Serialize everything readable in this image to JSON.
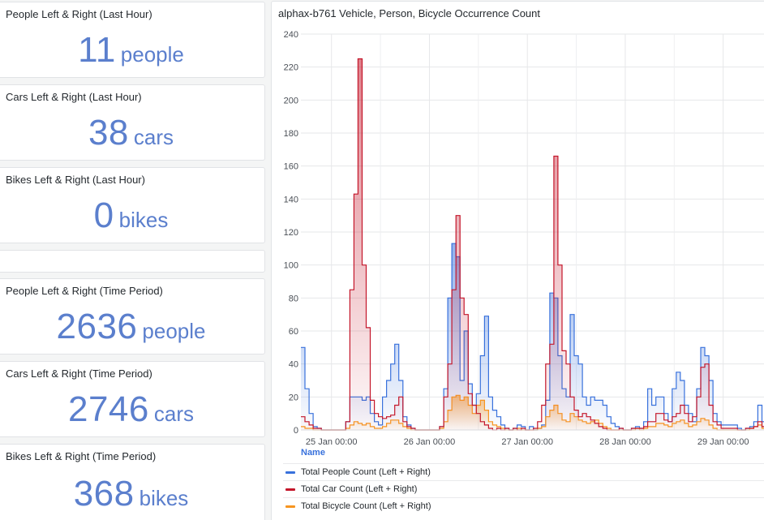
{
  "stats": [
    {
      "title": "People Left & Right (Last Hour)",
      "value": "11",
      "unit": "people"
    },
    {
      "title": "Cars Left & Right (Last Hour)",
      "value": "38",
      "unit": "cars"
    },
    {
      "title": "Bikes Left & Right (Last Hour)",
      "value": "0",
      "unit": "bikes"
    },
    {
      "title": "People Left & Right (Time Period)",
      "value": "2636",
      "unit": "people"
    },
    {
      "title": "Cars Left & Right (Time Period)",
      "value": "2746",
      "unit": "cars"
    },
    {
      "title": "Bikes Left & Right (Time Period)",
      "value": "368",
      "unit": "bikes"
    }
  ],
  "colors": {
    "people": "#3871dc",
    "cars": "#c4162a",
    "bikes": "#f79520",
    "stat_value": "#5b7fcd"
  },
  "chart_data": {
    "type": "line",
    "title": "alphax-b761 Vehicle, Person, Bicycle Occurrence Count",
    "legend_header": "Name",
    "ylim": [
      0,
      240
    ],
    "yticks": [
      0,
      20,
      40,
      60,
      80,
      100,
      120,
      140,
      160,
      180,
      200,
      220,
      240
    ],
    "xlim_hours": [
      -7.5,
      107
    ],
    "xticks": [
      {
        "label": "25 Jan 00:00",
        "hour": 0
      },
      {
        "label": "26 Jan 00:00",
        "hour": 24
      },
      {
        "label": "27 Jan 00:00",
        "hour": 48
      },
      {
        "label": "28 Jan 00:00",
        "hour": 72
      },
      {
        "label": "29 Jan 00:00",
        "hour": 96
      }
    ],
    "grid": true,
    "legend_position": "bottom",
    "series": [
      {
        "name": "Total People Count (Left + Right)",
        "color": "#3871dc",
        "x": [
          -7.5,
          -6.5,
          -5.5,
          -4.5,
          -3.5,
          -2.5,
          -1.5,
          3.5,
          4.5,
          5.5,
          6.5,
          7.5,
          8.5,
          9.5,
          10.5,
          11.5,
          12.5,
          13.5,
          14.5,
          15.5,
          16.5,
          17.5,
          18.5,
          19.5,
          20.5,
          26.5,
          27.5,
          28.5,
          29.5,
          30.5,
          31.5,
          32.5,
          33.5,
          34.5,
          35.5,
          36.5,
          37.5,
          38.5,
          39.5,
          40.5,
          41.5,
          42.5,
          43.5,
          44.5,
          45.5,
          46.5,
          47.5,
          48.5,
          49.5,
          50.5,
          51.5,
          52.5,
          53.5,
          54.5,
          55.5,
          56.5,
          57.5,
          58.5,
          59.5,
          60.5,
          61.5,
          62.5,
          63.5,
          64.5,
          65.5,
          66.5,
          67.5,
          68.5,
          69.5,
          70.5,
          71.5,
          72.5,
          73.5,
          74.5,
          75.5,
          76.5,
          77.5,
          78.5,
          79.5,
          80.5,
          81.5,
          82.5,
          83.5,
          84.5,
          85.5,
          86.5,
          87.5,
          88.5,
          89.5,
          90.5,
          91.5,
          92.5,
          93.5,
          94.5,
          95.5,
          99.5,
          100.5,
          101.5,
          102.5,
          103.5,
          104.5,
          105.5,
          106.5
        ],
        "values": [
          50,
          25,
          10,
          2,
          1,
          0,
          0,
          5,
          20,
          20,
          20,
          18,
          20,
          10,
          5,
          3,
          20,
          30,
          40,
          52,
          30,
          8,
          3,
          1,
          0,
          2,
          25,
          80,
          113,
          105,
          30,
          60,
          28,
          15,
          22,
          45,
          69,
          20,
          12,
          8,
          3,
          1,
          0,
          1,
          3,
          2,
          0,
          2,
          0,
          1,
          3,
          18,
          83,
          80,
          45,
          25,
          20,
          70,
          45,
          40,
          20,
          15,
          20,
          18,
          18,
          15,
          8,
          4,
          2,
          1,
          0,
          0,
          1,
          2,
          1,
          5,
          25,
          15,
          20,
          20,
          10,
          5,
          25,
          35,
          30,
          15,
          10,
          5,
          25,
          50,
          45,
          30,
          10,
          5,
          3,
          1,
          0,
          1,
          2,
          5,
          15,
          5,
          0
        ]
      },
      {
        "name": "Total Car Count (Left + Right)",
        "color": "#c4162a",
        "x": [
          -7.5,
          -6.5,
          -5.5,
          -4.5,
          -3.5,
          -2.5,
          -1.5,
          3.5,
          4.5,
          5.5,
          6.5,
          7.5,
          8.5,
          9.5,
          10.5,
          11.5,
          12.5,
          13.5,
          14.5,
          15.5,
          16.5,
          17.5,
          18.5,
          19.5,
          20.5,
          26.5,
          27.5,
          28.5,
          29.5,
          30.5,
          31.5,
          32.5,
          33.5,
          34.5,
          35.5,
          36.5,
          37.5,
          38.5,
          39.5,
          40.5,
          41.5,
          42.5,
          43.5,
          44.5,
          45.5,
          46.5,
          47.5,
          48.5,
          49.5,
          50.5,
          51.5,
          52.5,
          53.5,
          54.5,
          55.5,
          56.5,
          57.5,
          58.5,
          59.5,
          60.5,
          61.5,
          62.5,
          63.5,
          64.5,
          65.5,
          66.5,
          67.5,
          68.5,
          69.5,
          70.5,
          71.5,
          72.5,
          73.5,
          74.5,
          75.5,
          76.5,
          77.5,
          78.5,
          79.5,
          80.5,
          81.5,
          82.5,
          83.5,
          84.5,
          85.5,
          86.5,
          87.5,
          88.5,
          89.5,
          90.5,
          91.5,
          92.5,
          93.5,
          94.5,
          95.5,
          99.5,
          100.5,
          101.5,
          102.5,
          103.5,
          104.5,
          105.5,
          106.5
        ],
        "values": [
          8,
          5,
          3,
          1,
          1,
          0,
          0,
          5,
          85,
          143,
          225,
          100,
          62,
          18,
          10,
          8,
          7,
          8,
          9,
          15,
          20,
          5,
          2,
          1,
          0,
          2,
          20,
          40,
          85,
          130,
          80,
          70,
          22,
          15,
          10,
          5,
          3,
          1,
          0,
          1,
          0,
          1,
          0,
          1,
          0,
          1,
          0,
          0,
          1,
          5,
          15,
          40,
          52,
          166,
          100,
          48,
          40,
          20,
          12,
          8,
          10,
          8,
          6,
          4,
          2,
          1,
          0,
          0,
          0,
          1,
          0,
          0,
          1,
          1,
          1,
          2,
          5,
          5,
          10,
          10,
          6,
          5,
          8,
          10,
          15,
          10,
          5,
          8,
          20,
          38,
          40,
          15,
          5,
          3,
          1,
          0,
          0,
          1,
          1,
          2,
          5,
          2,
          0
        ]
      },
      {
        "name": "Total Bicycle Count (Left + Right)",
        "color": "#f79520",
        "x": [
          -7.5,
          -6.5,
          -5.5,
          -4.5,
          -3.5,
          -2.5,
          -1.5,
          3.5,
          4.5,
          5.5,
          6.5,
          7.5,
          8.5,
          9.5,
          10.5,
          11.5,
          12.5,
          13.5,
          14.5,
          15.5,
          16.5,
          17.5,
          18.5,
          19.5,
          20.5,
          26.5,
          27.5,
          28.5,
          29.5,
          30.5,
          31.5,
          32.5,
          33.5,
          34.5,
          35.5,
          36.5,
          37.5,
          38.5,
          39.5,
          40.5,
          41.5,
          42.5,
          43.5,
          44.5,
          45.5,
          46.5,
          47.5,
          48.5,
          49.5,
          50.5,
          51.5,
          52.5,
          53.5,
          54.5,
          55.5,
          56.5,
          57.5,
          58.5,
          59.5,
          60.5,
          61.5,
          62.5,
          63.5,
          64.5,
          65.5,
          66.5,
          67.5,
          68.5,
          69.5,
          70.5,
          71.5,
          72.5,
          73.5,
          74.5,
          75.5,
          76.5,
          77.5,
          78.5,
          79.5,
          80.5,
          81.5,
          82.5,
          83.5,
          84.5,
          85.5,
          86.5,
          87.5,
          88.5,
          89.5,
          90.5,
          91.5,
          92.5,
          93.5,
          94.5,
          95.5,
          99.5,
          100.5,
          101.5,
          102.5,
          103.5,
          104.5,
          105.5,
          106.5
        ],
        "values": [
          2,
          1,
          1,
          0,
          0,
          0,
          0,
          1,
          3,
          5,
          4,
          3,
          4,
          2,
          1,
          1,
          2,
          4,
          6,
          6,
          4,
          2,
          1,
          0,
          0,
          1,
          5,
          12,
          20,
          21,
          18,
          20,
          15,
          10,
          15,
          18,
          12,
          5,
          3,
          2,
          1,
          0,
          0,
          0,
          1,
          0,
          0,
          0,
          0,
          1,
          2,
          8,
          12,
          15,
          10,
          6,
          5,
          10,
          8,
          6,
          5,
          4,
          5,
          6,
          4,
          2,
          1,
          0,
          0,
          0,
          0,
          0,
          0,
          1,
          0,
          1,
          2,
          2,
          4,
          4,
          3,
          2,
          4,
          5,
          6,
          4,
          2,
          3,
          5,
          7,
          6,
          3,
          1,
          0,
          0,
          0,
          0,
          0,
          1,
          2,
          3,
          1,
          0
        ]
      }
    ]
  }
}
